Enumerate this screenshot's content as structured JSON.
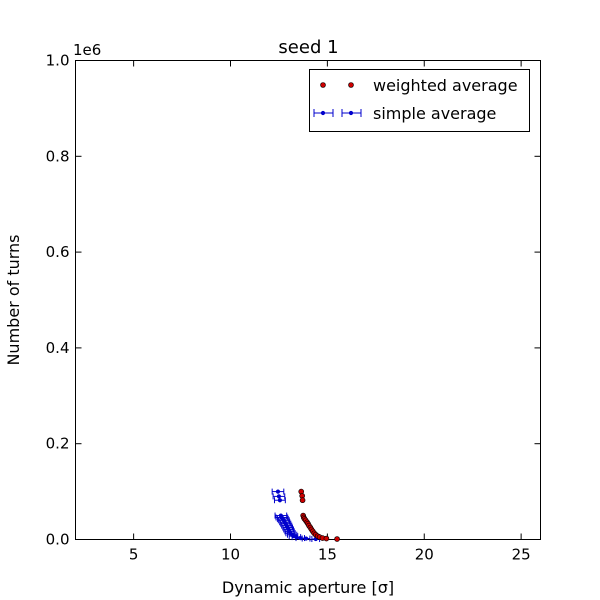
{
  "chart_data": {
    "type": "scatter",
    "title": "seed 1",
    "xlabel": "Dynamic aperture [σ]",
    "ylabel": "Number of turns",
    "offset_label": "1e6",
    "xlim": [
      2.0,
      26.0
    ],
    "ylim": [
      0,
      1.0
    ],
    "x_ticks": [
      5,
      10,
      15,
      20,
      25
    ],
    "x_tick_labels": [
      "5",
      "10",
      "15",
      "20",
      "25"
    ],
    "y_ticks": [
      0.0,
      0.2,
      0.4,
      0.6,
      0.8,
      1.0
    ],
    "y_tick_labels": [
      "0.0",
      "0.2",
      "0.4",
      "0.6",
      "0.8",
      "1.0"
    ],
    "grid": false,
    "legend_position": "top-right",
    "series": [
      {
        "name": "weighted average",
        "color": "#cc0000",
        "marker": "circle",
        "points": [
          [
            13.65,
            0.1
          ],
          [
            13.7,
            0.091
          ],
          [
            13.72,
            0.082
          ],
          [
            13.75,
            0.05
          ],
          [
            13.78,
            0.046
          ],
          [
            13.82,
            0.043
          ],
          [
            13.88,
            0.04
          ],
          [
            13.95,
            0.036
          ],
          [
            14.0,
            0.033
          ],
          [
            14.05,
            0.029
          ],
          [
            14.12,
            0.025
          ],
          [
            14.18,
            0.021
          ],
          [
            14.25,
            0.017
          ],
          [
            14.32,
            0.013
          ],
          [
            14.4,
            0.01
          ],
          [
            14.5,
            0.007
          ],
          [
            14.6,
            0.005
          ],
          [
            14.75,
            0.003
          ],
          [
            14.95,
            0.002
          ],
          [
            15.5,
            0.001
          ]
        ]
      },
      {
        "name": "simple average",
        "color": "#0000cc",
        "marker": "errorbar",
        "points": [
          [
            12.45,
            0.1,
            0.3
          ],
          [
            12.5,
            0.09,
            0.3
          ],
          [
            12.55,
            0.082,
            0.28
          ],
          [
            12.6,
            0.05,
            0.3
          ],
          [
            12.65,
            0.046,
            0.3
          ],
          [
            12.7,
            0.043,
            0.28
          ],
          [
            12.75,
            0.04,
            0.28
          ],
          [
            12.8,
            0.036,
            0.26
          ],
          [
            12.85,
            0.033,
            0.26
          ],
          [
            12.9,
            0.029,
            0.26
          ],
          [
            12.95,
            0.025,
            0.25
          ],
          [
            13.0,
            0.021,
            0.25
          ],
          [
            13.05,
            0.017,
            0.24
          ],
          [
            13.1,
            0.013,
            0.24
          ],
          [
            13.18,
            0.01,
            0.24
          ],
          [
            13.25,
            0.007,
            0.22
          ],
          [
            13.4,
            0.005,
            0.22
          ],
          [
            13.6,
            0.003,
            0.22
          ],
          [
            13.9,
            0.002,
            0.2
          ],
          [
            14.4,
            0.001,
            0.2
          ]
        ]
      }
    ]
  }
}
